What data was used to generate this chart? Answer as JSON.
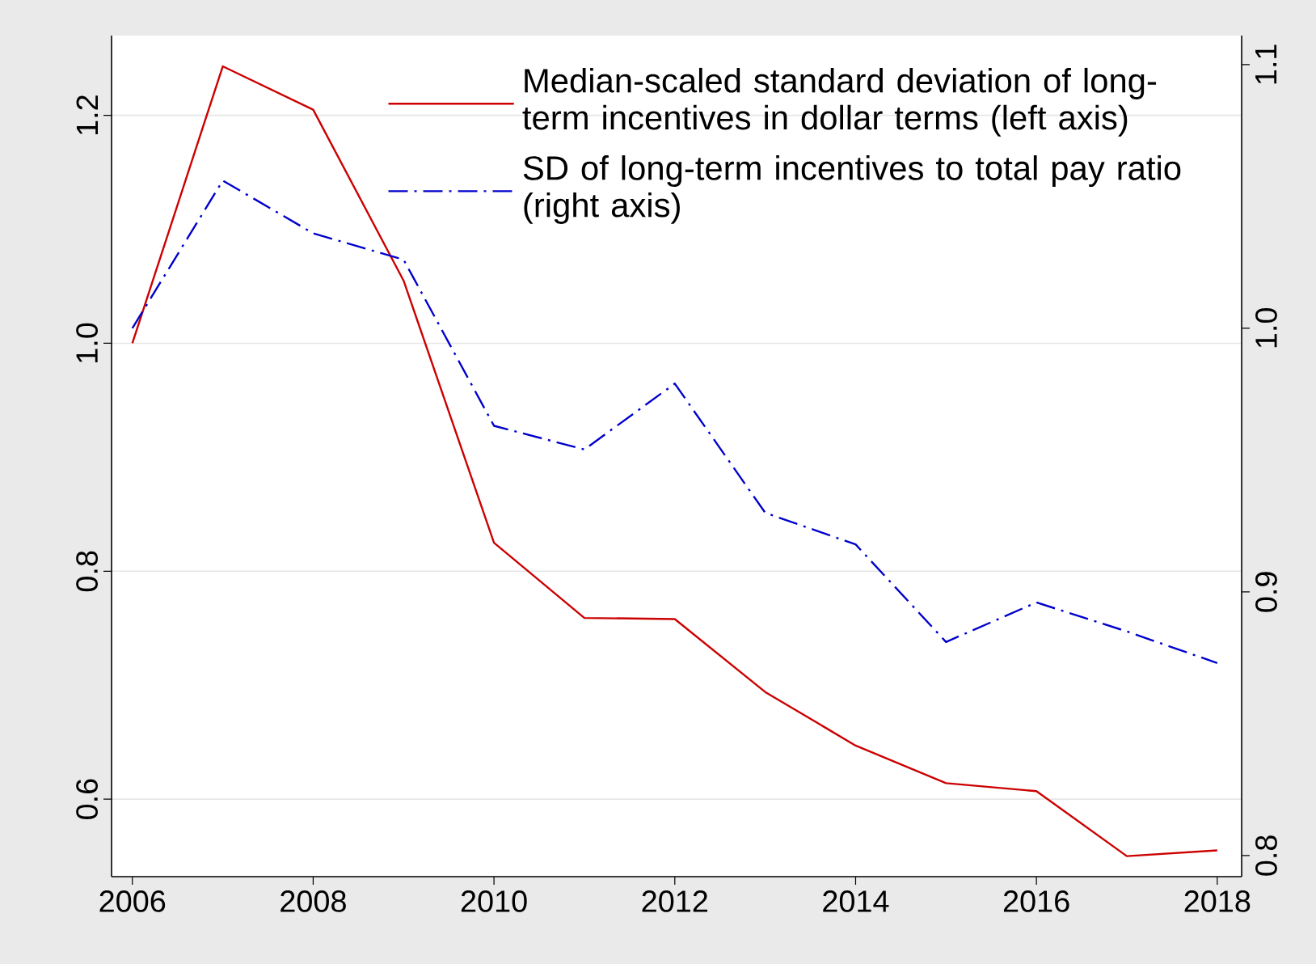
{
  "chart_data": {
    "type": "line",
    "x": [
      2006,
      2007,
      2008,
      2009,
      2010,
      2011,
      2012,
      2013,
      2014,
      2015,
      2016,
      2017,
      2018
    ],
    "series": [
      {
        "name": "Median-scaled standard deviation of long-term incentives in dollar terms (left axis)",
        "color": "#cc0000",
        "line_style": "solid",
        "values": [
          1.0,
          1.243,
          1.205,
          1.055,
          0.825,
          0.759,
          0.758,
          0.694,
          0.647,
          0.614,
          0.607,
          0.55,
          0.555
        ]
      },
      {
        "name": "SD of long-term incentives to total pay ratio (right axis)",
        "color": "#0000cc",
        "line_style": "dashdot",
        "axis": "y2",
        "values": [
          1.0,
          1.056,
          1.036,
          1.026,
          0.963,
          0.954,
          0.979,
          0.93,
          0.918,
          0.881,
          0.896,
          0.885,
          0.873
        ]
      }
    ],
    "xlim": [
      2005.77,
      2018.27
    ],
    "xticks": [
      2006,
      2008,
      2010,
      2012,
      2014,
      2016,
      2018
    ],
    "ylim": [
      0.532,
      1.27
    ],
    "yticks": [
      {
        "value": 0.6,
        "label": "0.6"
      },
      {
        "value": 0.8,
        "label": "0.8"
      },
      {
        "value": 1.0,
        "label": "1.0"
      },
      {
        "value": 1.2,
        "label": "1.2"
      }
    ],
    "y2lim": [
      0.792,
      1.111
    ],
    "y2ticks": [
      {
        "value": 0.8,
        "label": "0.8"
      },
      {
        "value": 0.9,
        "label": "0.9"
      },
      {
        "value": 1.0,
        "label": "1.0"
      },
      {
        "value": 1.1,
        "label": "1.1"
      }
    ],
    "grid": "y",
    "legend": "top right",
    "marker": "none"
  }
}
